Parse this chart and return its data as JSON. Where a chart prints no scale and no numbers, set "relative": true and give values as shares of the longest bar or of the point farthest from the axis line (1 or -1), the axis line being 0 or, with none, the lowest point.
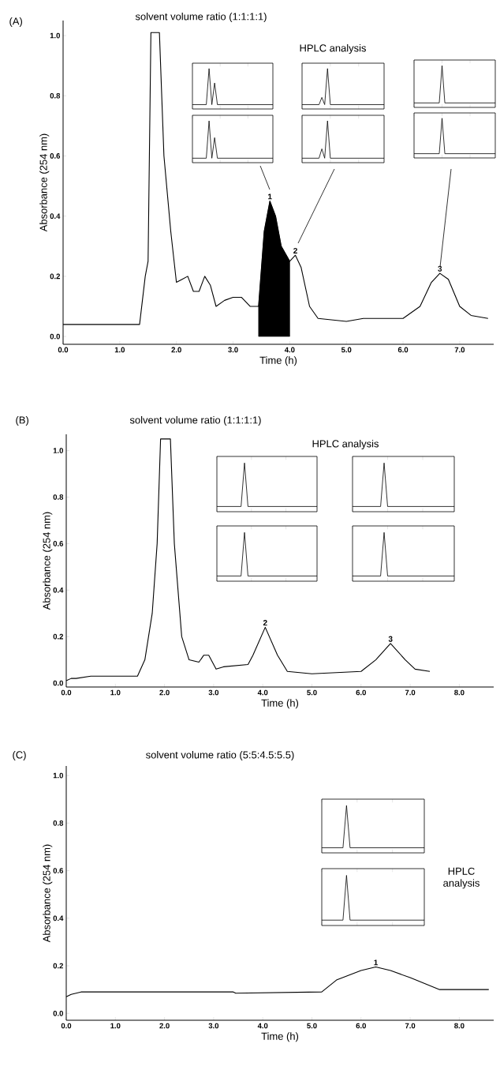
{
  "chart_data": [
    {
      "type": "line",
      "title": "solvent volume ratio (1:1:1:1)",
      "xlabel": "Time (h)",
      "ylabel": "Absorbance (254 nm)",
      "annotations": [
        "(A)",
        "HPLC analysis",
        {
          "text": "1",
          "x": 3.65,
          "y": 0.45
        },
        {
          "text": "2",
          "x": 4.1,
          "y": 0.27
        },
        {
          "text": "3",
          "x": 6.65,
          "y": 0.21
        }
      ],
      "xlim": [
        0,
        7.6
      ],
      "ylim": [
        -0.026,
        1.05
      ],
      "xticks": [
        {
          "value": 0,
          "label": "0.0"
        },
        {
          "value": 1,
          "label": "1.0"
        },
        {
          "value": 2,
          "label": "2.0"
        },
        {
          "value": 3,
          "label": "3.0"
        },
        {
          "value": 4,
          "label": "4.0"
        },
        {
          "value": 5,
          "label": "5.0"
        },
        {
          "value": 6,
          "label": "6.0"
        },
        {
          "value": 7,
          "label": "7.0"
        }
      ],
      "yticks": [
        {
          "value": 0,
          "label": "0.0"
        },
        {
          "value": 0.2,
          "label": "0.2"
        },
        {
          "value": 0.4,
          "label": "0.4"
        },
        {
          "value": 0.6,
          "label": "0.6"
        },
        {
          "value": 0.8,
          "label": "0.8"
        },
        {
          "value": 1,
          "label": "1.0"
        }
      ],
      "series": [
        {
          "type": "area",
          "color": "#000000",
          "x": [
            3.45,
            3.55,
            3.65,
            3.75,
            3.85,
            4.0
          ],
          "values": [
            0.1,
            0.35,
            0.45,
            0.4,
            0.3,
            0.25
          ]
        },
        {
          "type": "line",
          "color": "#000000",
          "x": [
            0,
            1.35,
            1.45,
            1.5,
            1.55,
            1.7,
            1.78,
            1.9,
            2.0,
            2.1,
            2.2,
            2.3,
            2.4,
            2.5,
            2.6,
            2.7,
            2.85,
            3.0,
            3.15,
            3.3,
            3.45,
            3.55,
            3.65,
            3.75,
            3.85,
            4.0,
            4.1,
            4.2,
            4.35,
            4.5,
            5.0,
            5.3,
            6.0,
            6.3,
            6.5,
            6.65,
            6.8,
            7.0,
            7.2,
            7.5
          ],
          "values": [
            0.04,
            0.04,
            0.2,
            0.25,
            1.01,
            1.01,
            0.6,
            0.35,
            0.18,
            0.19,
            0.2,
            0.15,
            0.15,
            0.2,
            0.17,
            0.1,
            0.12,
            0.13,
            0.13,
            0.1,
            0.1,
            0.35,
            0.45,
            0.4,
            0.3,
            0.25,
            0.27,
            0.23,
            0.1,
            0.06,
            0.05,
            0.06,
            0.06,
            0.1,
            0.18,
            0.21,
            0.19,
            0.1,
            0.07,
            0.06
          ]
        }
      ]
    },
    {
      "type": "line",
      "relative": true,
      "categories": [
        null,
        null,
        null,
        null,
        null,
        null,
        null,
        null,
        null,
        null,
        null,
        null,
        null,
        null,
        null,
        null,
        null,
        null,
        null,
        null,
        null,
        null,
        null,
        null,
        null,
        null,
        null,
        null,
        null,
        null
      ],
      "series": [
        {
          "color": "#000000",
          "values": [
            0,
            0,
            0,
            0,
            0,
            0,
            1,
            0,
            0.6,
            0,
            0,
            0,
            0,
            0,
            0,
            0,
            0,
            0,
            0,
            0,
            0,
            0,
            0,
            0,
            0,
            0,
            0,
            0,
            0,
            0
          ]
        }
      ]
    },
    {
      "type": "line",
      "relative": true,
      "categories": [
        null,
        null,
        null,
        null,
        null,
        null,
        null,
        null,
        null,
        null,
        null,
        null,
        null,
        null,
        null,
        null,
        null,
        null,
        null,
        null,
        null,
        null,
        null,
        null,
        null,
        null,
        null,
        null,
        null,
        null
      ],
      "series": [
        {
          "color": "#000000",
          "values": [
            0,
            0,
            0,
            0,
            0,
            0,
            1,
            0,
            0.55,
            0,
            0,
            0,
            0,
            0,
            0,
            0,
            0,
            0,
            0,
            0,
            0,
            0,
            0,
            0,
            0,
            0,
            0,
            0,
            0,
            0
          ]
        }
      ]
    },
    {
      "type": "line",
      "relative": true,
      "categories": [
        null,
        null,
        null,
        null,
        null,
        null,
        null,
        null,
        null,
        null,
        null,
        null,
        null,
        null,
        null,
        null,
        null,
        null,
        null,
        null,
        null,
        null,
        null,
        null,
        null,
        null,
        null,
        null,
        null,
        null
      ],
      "series": [
        {
          "color": "#000000",
          "values": [
            0,
            0,
            0,
            0,
            0,
            0,
            0,
            0.2,
            0,
            1,
            0,
            0,
            0,
            0,
            0,
            0,
            0,
            0,
            0,
            0,
            0,
            0,
            0,
            0,
            0,
            0,
            0,
            0,
            0,
            0
          ]
        }
      ]
    },
    {
      "type": "line",
      "relative": true,
      "categories": [
        null,
        null,
        null,
        null,
        null,
        null,
        null,
        null,
        null,
        null,
        null,
        null,
        null,
        null,
        null,
        null,
        null,
        null,
        null,
        null,
        null,
        null,
        null,
        null,
        null,
        null,
        null,
        null,
        null,
        null
      ],
      "series": [
        {
          "color": "#000000",
          "values": [
            0,
            0,
            0,
            0,
            0,
            0,
            0,
            0.25,
            0,
            1,
            0,
            0,
            0,
            0,
            0,
            0,
            0,
            0,
            0,
            0,
            0,
            0,
            0,
            0,
            0,
            0,
            0,
            0,
            0,
            0
          ]
        }
      ]
    },
    {
      "type": "line",
      "relative": true,
      "categories": [
        null,
        null,
        null,
        null,
        null,
        null,
        null,
        null,
        null,
        null,
        null,
        null,
        null,
        null,
        null,
        null,
        null,
        null,
        null,
        null,
        null,
        null,
        null,
        null,
        null,
        null,
        null,
        null,
        null,
        null
      ],
      "series": [
        {
          "color": "#000000",
          "values": [
            0,
            0,
            0,
            0,
            0,
            0,
            0,
            0,
            0,
            0,
            1,
            0,
            0,
            0,
            0,
            0,
            0,
            0,
            0,
            0,
            0,
            0,
            0,
            0,
            0,
            0,
            0,
            0,
            0,
            0
          ]
        }
      ]
    },
    {
      "type": "line",
      "relative": true,
      "categories": [
        null,
        null,
        null,
        null,
        null,
        null,
        null,
        null,
        null,
        null,
        null,
        null,
        null,
        null,
        null,
        null,
        null,
        null,
        null,
        null,
        null,
        null,
        null,
        null,
        null,
        null,
        null,
        null,
        null,
        null
      ],
      "series": [
        {
          "color": "#000000",
          "values": [
            0,
            0,
            0,
            0,
            0,
            0,
            0,
            0,
            0,
            0,
            1,
            0,
            0,
            0,
            0,
            0,
            0,
            0,
            0,
            0,
            0,
            0,
            0,
            0,
            0,
            0,
            0,
            0,
            0,
            0
          ]
        }
      ]
    },
    {
      "type": "line",
      "title": "solvent volume ratio (1:1:1:1)",
      "xlabel": "Time (h)",
      "ylabel": "Absorbance (254 nm)",
      "annotations": [
        "(B)",
        "HPLC analysis",
        {
          "text": "2",
          "x": 4.05,
          "y": 0.24
        },
        {
          "text": "3",
          "x": 6.6,
          "y": 0.17
        }
      ],
      "xlim": [
        0,
        8.7
      ],
      "ylim": [
        -0.017,
        1.07
      ],
      "xticks": [
        {
          "value": 0,
          "label": "0.0"
        },
        {
          "value": 1,
          "label": "1.0"
        },
        {
          "value": 2,
          "label": "2.0"
        },
        {
          "value": 3,
          "label": "3.0"
        },
        {
          "value": 4,
          "label": "4.0"
        },
        {
          "value": 5,
          "label": "5.0"
        },
        {
          "value": 6,
          "label": "6.0"
        },
        {
          "value": 7,
          "label": "7.0"
        },
        {
          "value": 8,
          "label": "8.0"
        }
      ],
      "yticks": [
        {
          "value": 0,
          "label": "0.0"
        },
        {
          "value": 0.2,
          "label": "0.2"
        },
        {
          "value": 0.4,
          "label": "0.4"
        },
        {
          "value": 0.6,
          "label": "0.6"
        },
        {
          "value": 0.8,
          "label": "0.8"
        },
        {
          "value": 1,
          "label": "1.0"
        }
      ],
      "series": [
        {
          "type": "line",
          "color": "#000000",
          "x": [
            0,
            0.1,
            0.2,
            0.5,
            1.0,
            1.45,
            1.6,
            1.75,
            1.85,
            1.92,
            2.12,
            2.2,
            2.35,
            2.5,
            2.7,
            2.8,
            2.9,
            3.05,
            3.2,
            3.7,
            3.8,
            4.05,
            4.3,
            4.5,
            5.0,
            6.0,
            6.3,
            6.6,
            6.9,
            7.1,
            7.4
          ],
          "values": [
            0.01,
            0.02,
            0.02,
            0.03,
            0.03,
            0.03,
            0.1,
            0.3,
            0.6,
            1.05,
            1.05,
            0.6,
            0.2,
            0.1,
            0.09,
            0.12,
            0.12,
            0.06,
            0.07,
            0.08,
            0.12,
            0.24,
            0.12,
            0.05,
            0.04,
            0.05,
            0.1,
            0.17,
            0.1,
            0.06,
            0.05
          ]
        }
      ]
    },
    {
      "type": "line",
      "relative": true,
      "categories": [
        null,
        null,
        null,
        null,
        null,
        null,
        null,
        null,
        null,
        null,
        null,
        null,
        null,
        null,
        null,
        null,
        null,
        null,
        null,
        null,
        null,
        null,
        null,
        null,
        null,
        null,
        null,
        null,
        null,
        null
      ],
      "series": [
        {
          "color": "#000000",
          "values": [
            0,
            0,
            0,
            0,
            0,
            0,
            0,
            0,
            1,
            0,
            0,
            0,
            0,
            0,
            0,
            0,
            0,
            0,
            0,
            0,
            0,
            0,
            0,
            0,
            0,
            0,
            0,
            0,
            0,
            0
          ]
        }
      ]
    },
    {
      "type": "line",
      "relative": true,
      "categories": [
        null,
        null,
        null,
        null,
        null,
        null,
        null,
        null,
        null,
        null,
        null,
        null,
        null,
        null,
        null,
        null,
        null,
        null,
        null,
        null,
        null,
        null,
        null,
        null,
        null,
        null,
        null,
        null,
        null,
        null
      ],
      "series": [
        {
          "color": "#000000",
          "values": [
            0,
            0,
            0,
            0,
            0,
            0,
            0,
            0,
            1,
            0,
            0,
            0,
            0,
            0,
            0,
            0,
            0,
            0,
            0,
            0,
            0,
            0,
            0,
            0,
            0,
            0,
            0,
            0,
            0,
            0
          ]
        }
      ]
    },
    {
      "type": "line",
      "relative": true,
      "categories": [
        null,
        null,
        null,
        null,
        null,
        null,
        null,
        null,
        null,
        null,
        null,
        null,
        null,
        null,
        null,
        null,
        null,
        null,
        null,
        null,
        null,
        null,
        null,
        null,
        null,
        null,
        null,
        null,
        null,
        null
      ],
      "series": [
        {
          "color": "#000000",
          "values": [
            0,
            0,
            0,
            0,
            0,
            0,
            0,
            0,
            0,
            1,
            0,
            0,
            0,
            0,
            0,
            0,
            0,
            0,
            0,
            0,
            0,
            0,
            0,
            0,
            0,
            0,
            0,
            0,
            0,
            0
          ]
        }
      ]
    },
    {
      "type": "line",
      "relative": true,
      "categories": [
        null,
        null,
        null,
        null,
        null,
        null,
        null,
        null,
        null,
        null,
        null,
        null,
        null,
        null,
        null,
        null,
        null,
        null,
        null,
        null,
        null,
        null,
        null,
        null,
        null,
        null,
        null,
        null,
        null,
        null
      ],
      "series": [
        {
          "color": "#000000",
          "values": [
            0,
            0,
            0,
            0,
            0,
            0,
            0,
            0,
            0,
            1,
            0,
            0,
            0,
            0,
            0,
            0,
            0,
            0,
            0,
            0,
            0,
            0,
            0,
            0,
            0,
            0,
            0,
            0,
            0,
            0
          ]
        }
      ]
    },
    {
      "type": "line",
      "title": "solvent volume ratio (5:5:4.5:5.5)",
      "xlabel": "Time (h)",
      "ylabel": "Absorbance (254 nm)",
      "annotations": [
        "(C)",
        "HPLC analysis",
        {
          "text": "1",
          "x": 6.3,
          "y": 0.195
        }
      ],
      "xlim": [
        0,
        8.7
      ],
      "ylim": [
        -0.029,
        1.04
      ],
      "xticks": [
        {
          "value": 0,
          "label": "0.0"
        },
        {
          "value": 1,
          "label": "1.0"
        },
        {
          "value": 2,
          "label": "2.0"
        },
        {
          "value": 3,
          "label": "3.0"
        },
        {
          "value": 4,
          "label": "4.0"
        },
        {
          "value": 5,
          "label": "5.0"
        },
        {
          "value": 6,
          "label": "6.0"
        },
        {
          "value": 7,
          "label": "7.0"
        },
        {
          "value": 8,
          "label": "8.0"
        }
      ],
      "yticks": [
        {
          "value": 0,
          "label": "0.0"
        },
        {
          "value": 0.2,
          "label": "0.2"
        },
        {
          "value": 0.4,
          "label": "0.4"
        },
        {
          "value": 0.6,
          "label": "0.6"
        },
        {
          "value": 0.8,
          "label": "0.8"
        },
        {
          "value": 1,
          "label": "1.0"
        }
      ],
      "series": [
        {
          "type": "line",
          "color": "#000000",
          "x": [
            0,
            0.1,
            0.3,
            2.0,
            3.4,
            3.45,
            5.2,
            5.5,
            6.0,
            6.3,
            6.6,
            7.0,
            7.6,
            8.6
          ],
          "values": [
            0.07,
            0.08,
            0.09,
            0.09,
            0.09,
            0.085,
            0.09,
            0.14,
            0.18,
            0.195,
            0.18,
            0.15,
            0.1,
            0.1
          ]
        }
      ]
    },
    {
      "type": "line",
      "relative": true,
      "categories": [
        null,
        null,
        null,
        null,
        null,
        null,
        null,
        null,
        null,
        null,
        null,
        null,
        null,
        null,
        null,
        null,
        null,
        null,
        null,
        null,
        null,
        null,
        null,
        null,
        null,
        null,
        null,
        null,
        null,
        null
      ],
      "series": [
        {
          "color": "#000000",
          "values": [
            0,
            0,
            0,
            0,
            0,
            0,
            0,
            1,
            0,
            0,
            0,
            0,
            0,
            0,
            0,
            0,
            0,
            0,
            0,
            0,
            0,
            0,
            0,
            0,
            0,
            0,
            0,
            0,
            0,
            0
          ]
        }
      ]
    },
    {
      "type": "line",
      "relative": true,
      "categories": [
        null,
        null,
        null,
        null,
        null,
        null,
        null,
        null,
        null,
        null,
        null,
        null,
        null,
        null,
        null,
        null,
        null,
        null,
        null,
        null,
        null,
        null,
        null,
        null,
        null,
        null,
        null,
        null,
        null,
        null
      ],
      "series": [
        {
          "color": "#000000",
          "values": [
            0,
            0,
            0,
            0,
            0,
            0,
            0,
            1,
            0,
            0,
            0,
            0,
            0,
            0,
            0,
            0,
            0,
            0,
            0,
            0,
            0,
            0,
            0,
            0,
            0,
            0,
            0,
            0,
            0,
            0
          ]
        }
      ]
    }
  ]
}
